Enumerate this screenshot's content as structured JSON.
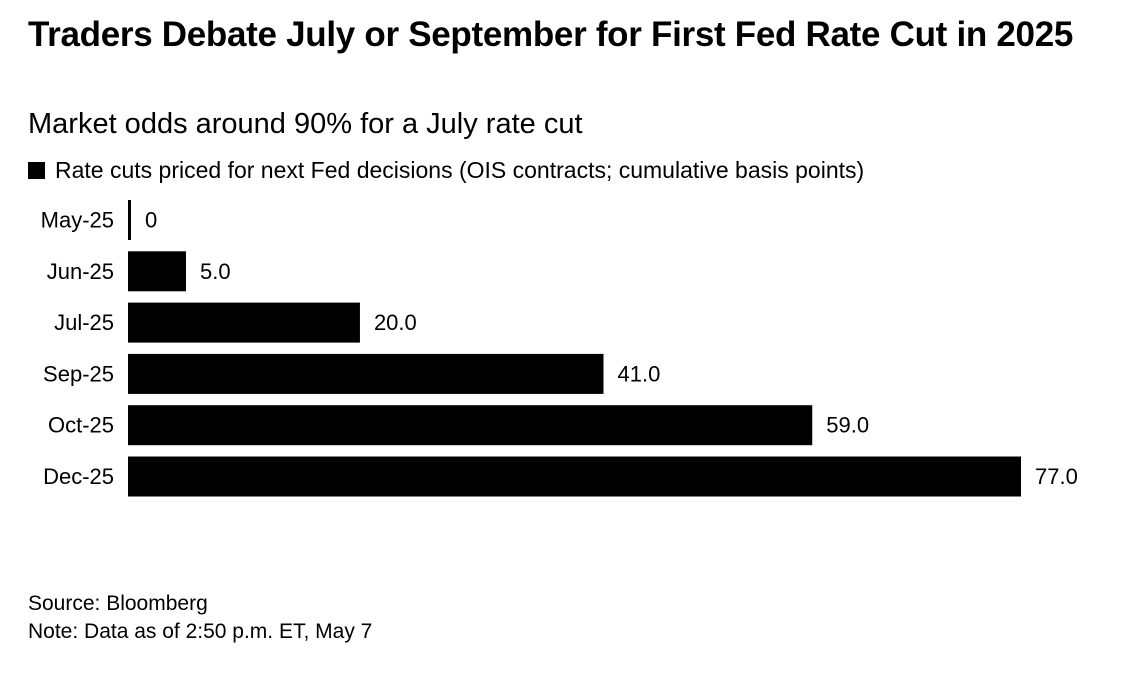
{
  "header": {
    "title": "Traders Debate July or September for First Fed Rate Cut in 2025",
    "subtitle": "Market odds around 90% for a July rate cut"
  },
  "legend": {
    "label": "Rate cuts priced for next Fed decisions (OIS contracts; cumulative basis points)",
    "color": "#000000"
  },
  "chart_data": {
    "type": "bar",
    "orientation": "horizontal",
    "categories": [
      "May-25",
      "Jun-25",
      "Jul-25",
      "Sep-25",
      "Oct-25",
      "Dec-25"
    ],
    "series": [
      {
        "name": "Rate cuts priced for next Fed decisions (OIS contracts; cumulative basis points)",
        "values": [
          0,
          5.0,
          20.0,
          41.0,
          59.0,
          77.0
        ],
        "labels": [
          "0",
          "5.0",
          "20.0",
          "41.0",
          "59.0",
          "77.0"
        ],
        "color": "#000000"
      }
    ],
    "xlim": [
      0,
      77
    ],
    "grid": false,
    "legend_position": "top-left"
  },
  "footer": {
    "source": "Source: Bloomberg",
    "note": "Note: Data as of 2:50 p.m. ET, May 7"
  }
}
